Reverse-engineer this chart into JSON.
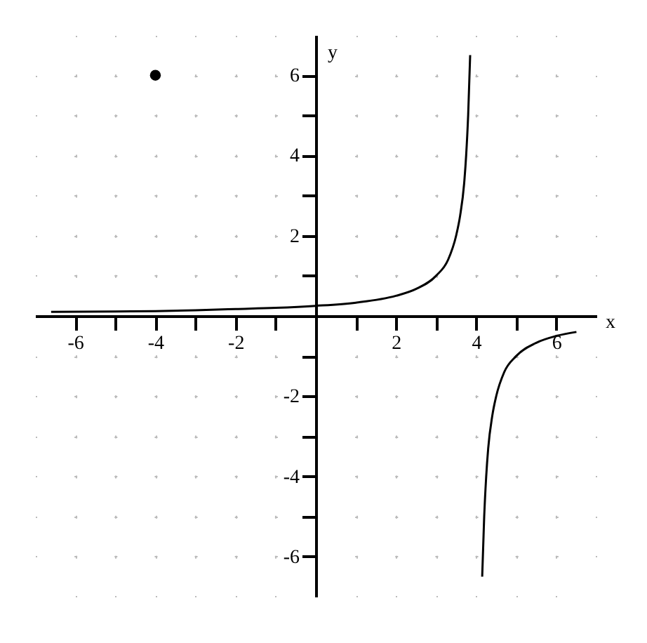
{
  "chart_data": {
    "type": "line",
    "xlabel": "x",
    "ylabel": "y",
    "xlim": [
      -7,
      7
    ],
    "ylim": [
      -7,
      7
    ],
    "xticks": [
      -6,
      {
        "value": -5,
        "label": null
      },
      -4,
      {
        "value": -3,
        "label": null
      },
      -2,
      {
        "value": -1,
        "label": null
      },
      {
        "value": 1,
        "label": null
      },
      2,
      {
        "value": 3,
        "label": null
      },
      4,
      {
        "value": 5,
        "label": null
      },
      6
    ],
    "yticks": [
      -6,
      {
        "value": -5,
        "label": null
      },
      -4,
      {
        "value": -3,
        "label": null
      },
      -2,
      {
        "value": -1,
        "label": null
      },
      {
        "value": 1,
        "label": null
      },
      2,
      {
        "value": 3,
        "label": null
      },
      4,
      {
        "value": 5,
        "label": null
      },
      6
    ],
    "grid": true,
    "line_style": "solid",
    "series": [
      {
        "color": "#000000",
        "x": [
          -6.6,
          -5,
          -4,
          -3,
          -2,
          -1,
          0,
          1,
          2,
          2.5,
          3,
          3.3,
          3.5,
          3.6,
          3.7,
          3.75,
          3.8,
          3.85
        ],
        "values": [
          0.1,
          0.11,
          0.12,
          0.14,
          0.17,
          0.2,
          0.25,
          0.33,
          0.5,
          0.67,
          1,
          1.4,
          2,
          2.5,
          3.3,
          4,
          5,
          6.5
        ]
      },
      {
        "color": "#000000",
        "x": [
          4.15,
          4.2,
          4.25,
          4.3,
          4.4,
          4.5,
          4.7,
          5,
          5.5,
          6,
          6.5
        ],
        "values": [
          -6.5,
          -5,
          -4,
          -3.3,
          -2.5,
          -2,
          -1.4,
          -1,
          -0.67,
          -0.5,
          -0.4
        ]
      },
      {
        "type": "scatter",
        "color": "#000000",
        "marker": "circle",
        "x": [
          -4
        ],
        "values": [
          6
        ]
      }
    ]
  }
}
